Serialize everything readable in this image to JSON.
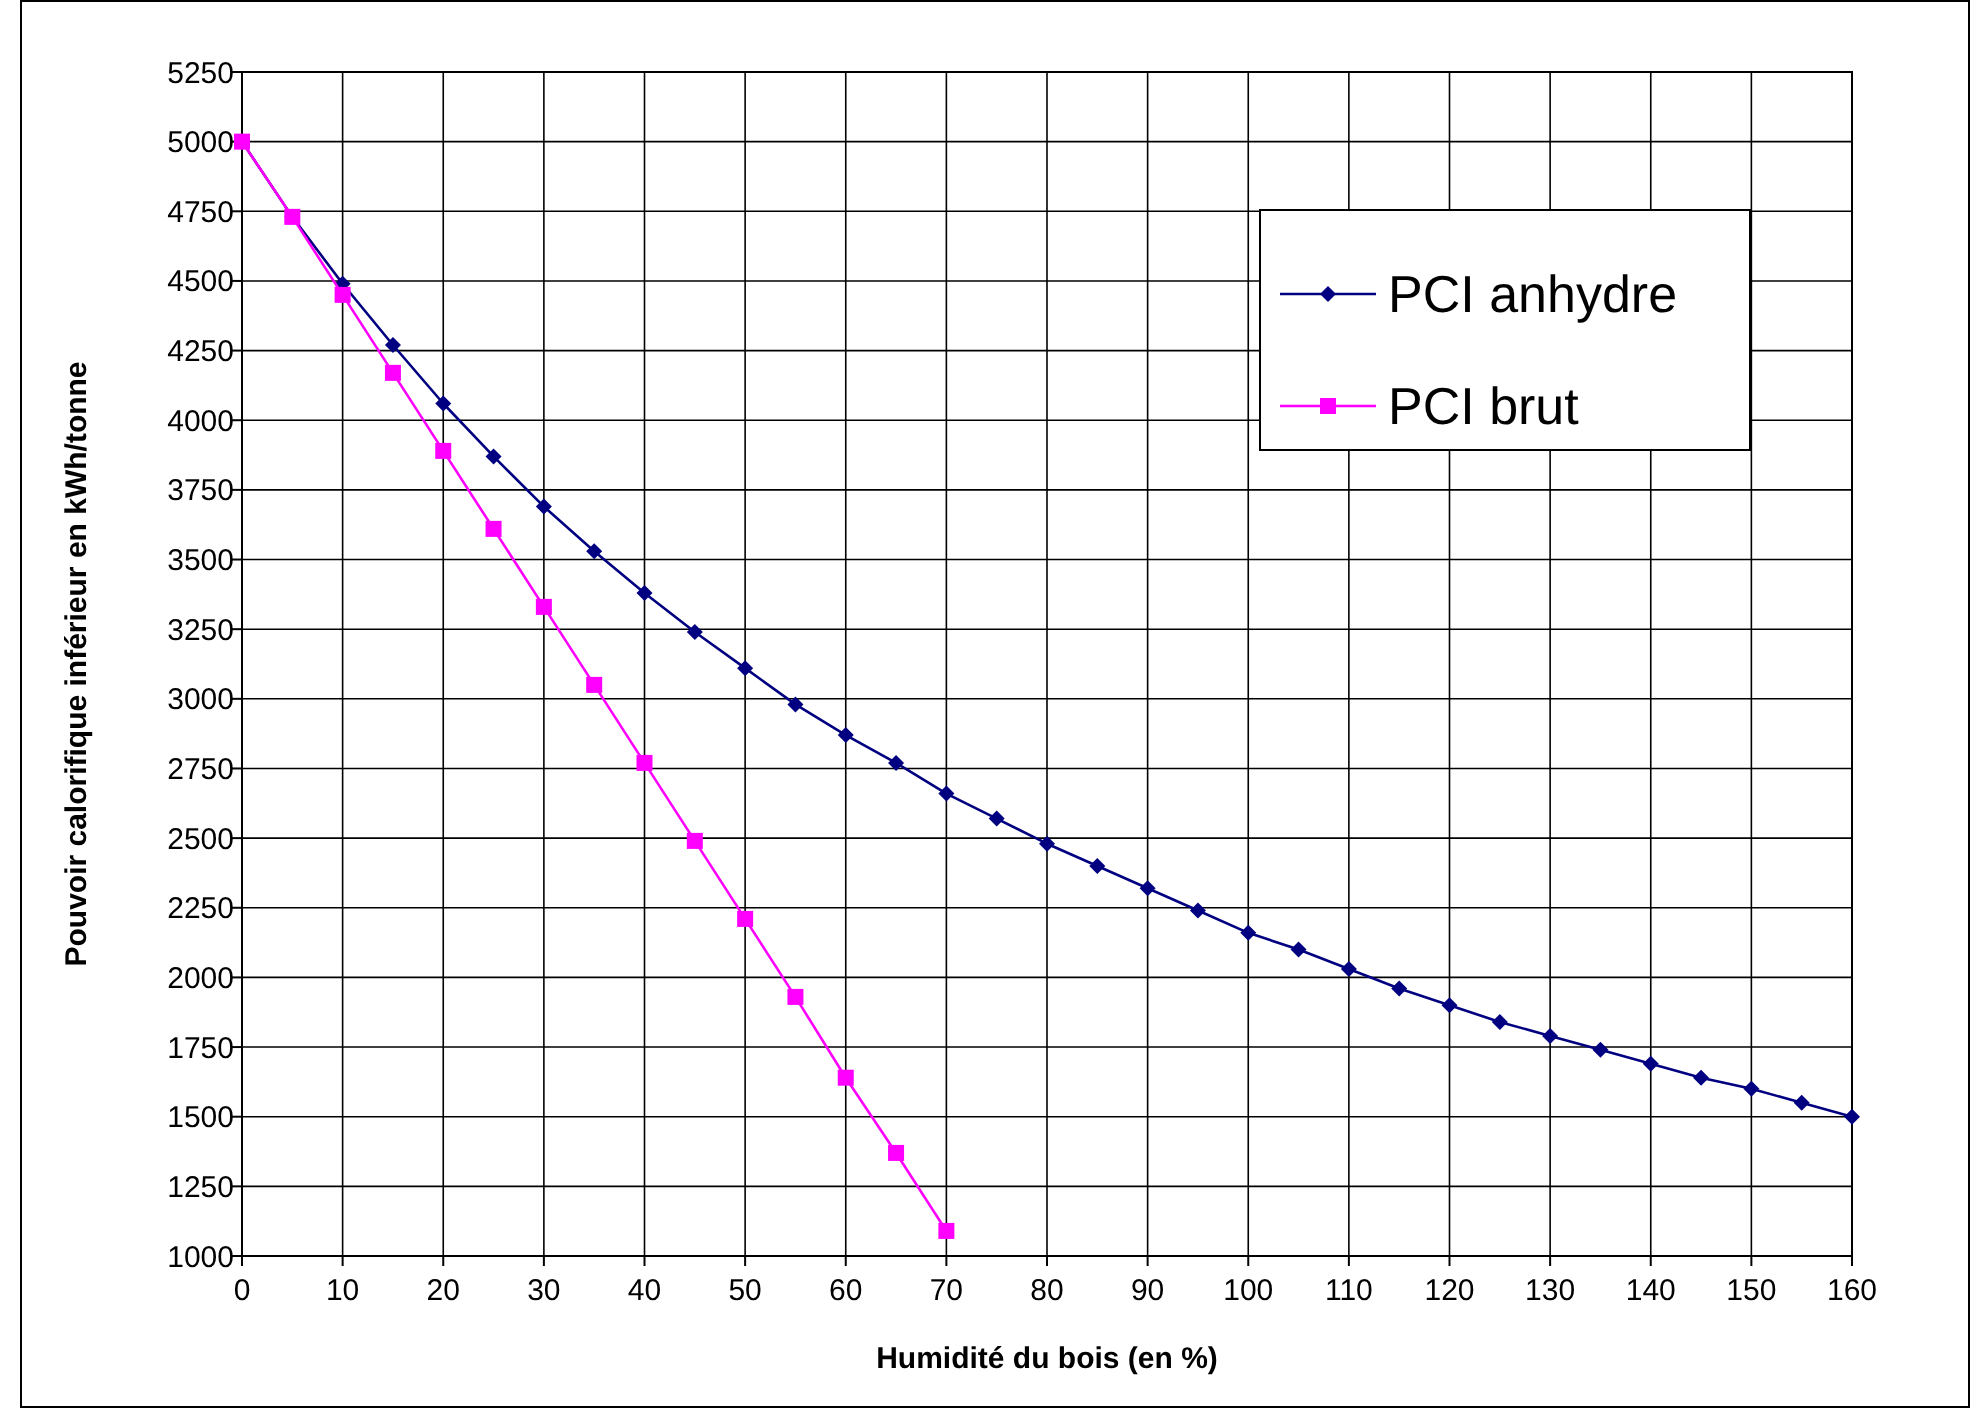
{
  "chart_data": {
    "type": "line",
    "xlabel": "Humidité du bois (en %)",
    "ylabel": "Pouvoir calorifique inférieur en kWh/tonne",
    "series": [
      {
        "name": "PCI anhydre",
        "color": "#000080",
        "marker": "diamond",
        "x": [
          0,
          5,
          10,
          15,
          20,
          25,
          30,
          35,
          40,
          45,
          50,
          55,
          60,
          65,
          70,
          75,
          80,
          85,
          90,
          95,
          100,
          105,
          110,
          115,
          120,
          125,
          130,
          135,
          140,
          145,
          150,
          155,
          160
        ],
        "values": [
          5000,
          4730,
          4490,
          4270,
          4060,
          3870,
          3690,
          3530,
          3380,
          3240,
          3110,
          2980,
          2870,
          2770,
          2660,
          2570,
          2480,
          2400,
          2320,
          2240,
          2160,
          2100,
          2030,
          1960,
          1900,
          1840,
          1790,
          1740,
          1690,
          1640,
          1600,
          1550,
          1500
        ]
      },
      {
        "name": "PCI brut",
        "color": "#ff00ff",
        "marker": "square",
        "x": [
          0,
          5,
          10,
          15,
          20,
          25,
          30,
          35,
          40,
          45,
          50,
          55,
          60,
          65,
          70
        ],
        "values": [
          5000,
          4730,
          4450,
          4170,
          3890,
          3610,
          3330,
          3050,
          2770,
          2490,
          2210,
          1930,
          1640,
          1370,
          1090
        ]
      }
    ],
    "xlim": [
      0,
      160
    ],
    "xticks": [
      0,
      10,
      20,
      30,
      40,
      50,
      60,
      70,
      80,
      90,
      100,
      110,
      120,
      130,
      140,
      150,
      160
    ],
    "ylim": [
      1000,
      5250
    ],
    "yticks": [
      1000,
      1250,
      1500,
      1750,
      2000,
      2250,
      2500,
      2750,
      3000,
      3250,
      3500,
      3750,
      4000,
      4250,
      4500,
      4750,
      5000,
      5250
    ],
    "grid": true,
    "legend": "top right"
  }
}
